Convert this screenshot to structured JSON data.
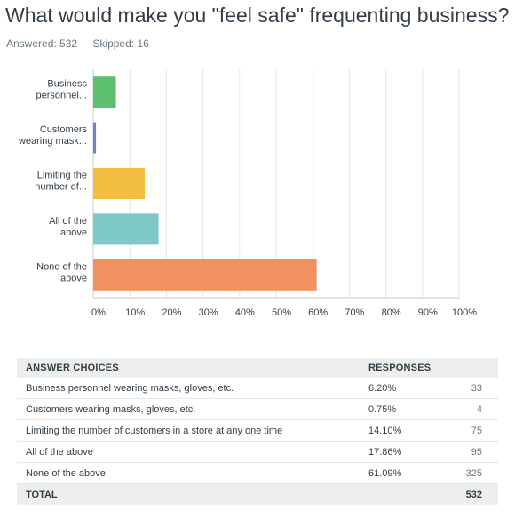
{
  "page": {
    "title": "What would make you \"feel safe\" frequenting business?",
    "answered": "Answered: 532",
    "skipped": "Skipped: 16"
  },
  "chart_data": {
    "type": "bar",
    "orientation": "horizontal",
    "categories": [
      [
        "Business",
        "personnel..."
      ],
      [
        "Customers",
        "wearing mask..."
      ],
      [
        "Limiting the",
        "number of..."
      ],
      [
        "All of the",
        "above"
      ],
      [
        "None of the",
        "above"
      ]
    ],
    "values": [
      6.2,
      0.75,
      14.1,
      17.86,
      61.09
    ],
    "colors": [
      "#5ebf71",
      "#6b88bd",
      "#f2be42",
      "#7ec8c9",
      "#f19160"
    ],
    "xlim": [
      0,
      100
    ],
    "xticks": [
      "0%",
      "10%",
      "20%",
      "30%",
      "40%",
      "50%",
      "60%",
      "70%",
      "80%",
      "90%",
      "100%"
    ],
    "grid": true
  },
  "table": {
    "headers": {
      "choices": "ANSWER CHOICES",
      "responses": "RESPONSES"
    },
    "rows": [
      {
        "label": "Business personnel wearing masks, gloves, etc.",
        "pct": "6.20%",
        "count": "33"
      },
      {
        "label": "Customers wearing masks, gloves, etc.",
        "pct": "0.75%",
        "count": "4"
      },
      {
        "label": "Limiting the number of customers in a store at any one time",
        "pct": "14.10%",
        "count": "75"
      },
      {
        "label": "All of the above",
        "pct": "17.86%",
        "count": "95"
      },
      {
        "label": "None of the above",
        "pct": "61.09%",
        "count": "325"
      }
    ],
    "total_label": "TOTAL",
    "total_count": "532"
  }
}
